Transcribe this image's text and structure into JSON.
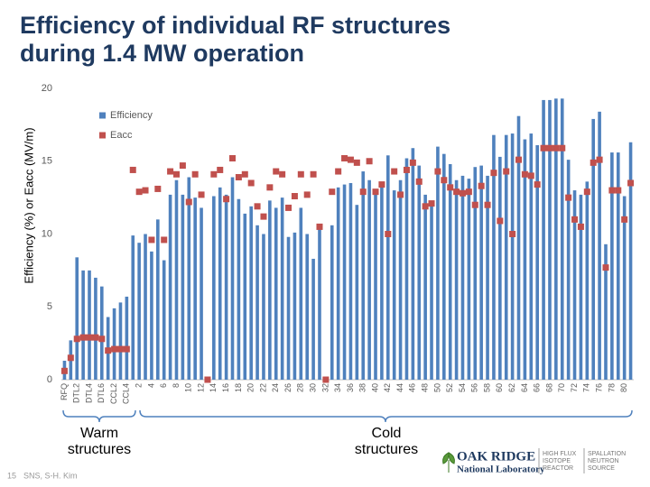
{
  "chart_data": {
    "type": "bar",
    "title": [
      "Efficiency of individual RF structures",
      "during 1.4 MW operation"
    ],
    "y_label": "Efficiency (%) or Eacc (MV/m)",
    "categories": [
      "RFQ",
      null,
      "DTL2",
      null,
      "DTL4",
      null,
      "DTL6",
      null,
      "CCL2",
      null,
      "CCL4",
      null,
      "2",
      null,
      "4",
      null,
      "6",
      null,
      "8",
      null,
      "10",
      null,
      "12",
      null,
      "14",
      null,
      "16",
      null,
      "18",
      null,
      "20",
      null,
      "22",
      null,
      "24",
      null,
      "26",
      null,
      "28",
      null,
      "30",
      null,
      "32",
      null,
      "34",
      null,
      "36",
      null,
      "38",
      null,
      "40",
      null,
      "42",
      null,
      "44",
      null,
      "46",
      null,
      "48",
      null,
      "50",
      null,
      "52",
      null,
      "54",
      null,
      "56",
      null,
      "58",
      null,
      "60",
      null,
      "62",
      null,
      "64",
      null,
      "66",
      null,
      "68",
      null,
      "70",
      null,
      "72",
      null,
      "74",
      null,
      "76",
      null,
      "78",
      null,
      "80",
      null
    ],
    "series": [
      {
        "name": "Efficiency",
        "color": "#4f81bd",
        "values": [
          1.3,
          2.7,
          8.4,
          7.5,
          7.5,
          7.0,
          6.4,
          4.3,
          4.9,
          5.3,
          5.7,
          9.9,
          9.4,
          10.0,
          8.8,
          11.0,
          8.2,
          12.7,
          13.7,
          12.7,
          13.9,
          12.5,
          11.8,
          0,
          12.6,
          13.2,
          12.7,
          13.9,
          12.4,
          11.4,
          11.9,
          10.6,
          10.0,
          12.3,
          11.8,
          12.5,
          9.8,
          10.1,
          11.8,
          10.0,
          8.3,
          10.6,
          0,
          10.6,
          13.2,
          13.4,
          13.5,
          12.0,
          14.3,
          13.7,
          13.0,
          13.3,
          15.4,
          13.0,
          13.7,
          15.2,
          15.9,
          14.7,
          12.7,
          12.0,
          16.0,
          15.5,
          14.8,
          13.7,
          14.0,
          13.8,
          14.6,
          14.7,
          14.0,
          16.8,
          15.3,
          16.8,
          16.9,
          18.1,
          16.5,
          16.9,
          16.1,
          19.2,
          19.2,
          19.3,
          19.3,
          15.1,
          13.0,
          12.7,
          13.6,
          17.9,
          18.4,
          9.3,
          15.6,
          15.6,
          12.6,
          16.3
        ]
      },
      {
        "name": "Eacc",
        "color": "#c0504d",
        "values": [
          0.6,
          1.5,
          2.8,
          2.9,
          2.9,
          2.9,
          2.8,
          2.0,
          2.1,
          2.1,
          2.1,
          14.4,
          12.9,
          13.0,
          9.6,
          13.1,
          9.6,
          14.3,
          14.1,
          14.7,
          12.2,
          14.1,
          12.7,
          0,
          14.1,
          14.4,
          12.4,
          15.2,
          13.9,
          14.1,
          13.5,
          11.9,
          11.2,
          13.2,
          14.3,
          14.1,
          11.8,
          12.6,
          14.1,
          12.7,
          14.1,
          10.5,
          0,
          12.9,
          14.3,
          15.2,
          15.1,
          14.9,
          12.9,
          15.0,
          12.9,
          13.4,
          10.0,
          14.3,
          12.7,
          14.4,
          14.9,
          13.6,
          11.9,
          12.1,
          14.3,
          13.7,
          13.2,
          12.9,
          12.8,
          12.9,
          12.0,
          13.3,
          12.0,
          14.2,
          10.9,
          14.3,
          10.0,
          15.1,
          14.1,
          14.0,
          13.4,
          15.9,
          15.9,
          15.9,
          15.9,
          12.5,
          11.0,
          10.5,
          12.9,
          14.9,
          15.1,
          7.7,
          13.0,
          13.0,
          11.0,
          13.5
        ]
      }
    ],
    "ylim": [
      0,
      20
    ],
    "yticks": [
      0,
      5,
      10,
      15,
      20
    ],
    "grid": false,
    "legend": "upper left",
    "annotations": [
      [
        "Warm",
        "structures"
      ],
      [
        "Cold",
        "structures"
      ]
    ]
  },
  "footer": {
    "page": "15",
    "credit": "SNS, S-H. Kim"
  },
  "logo": {
    "name": [
      "OAK RIDGE",
      "National Laboratory"
    ],
    "left": [
      "HIGH FLUX",
      "ISOTOPE",
      "REACTOR"
    ],
    "right": [
      "SPALLATION",
      "NEUTRON",
      "SOURCE"
    ]
  }
}
